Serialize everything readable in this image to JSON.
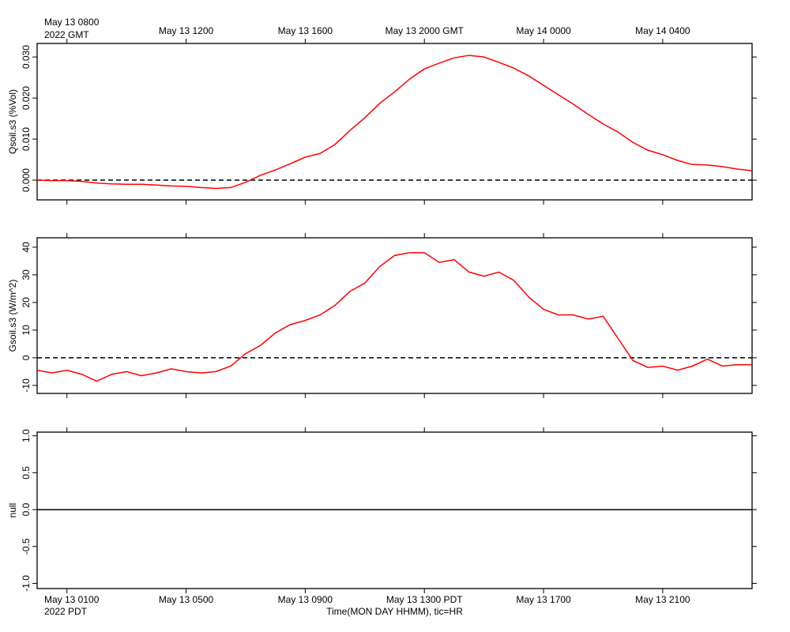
{
  "chart_data": [
    {
      "type": "line",
      "ylabel": "Qsoil.s3 (%Vol)",
      "x": [
        7,
        7.5,
        8,
        8.5,
        9,
        9.5,
        10,
        10.5,
        11,
        11.5,
        12,
        12.5,
        13,
        13.5,
        14,
        14.5,
        15,
        15.5,
        16,
        16.5,
        17,
        17.5,
        18,
        18.5,
        19,
        19.5,
        20,
        20.5,
        21,
        21.5,
        22,
        22.5,
        23,
        23.5,
        24,
        24.5,
        25,
        25.5,
        26,
        26.5,
        27,
        27.5,
        28,
        28.5,
        29,
        29.5,
        30,
        30.5,
        31
      ],
      "series": [
        {
          "color": "#ff0000",
          "values": [
            0,
            -0.0001,
            -0.0001,
            -0.0003,
            -0.0007,
            -0.0009,
            -0.001,
            -0.001,
            -0.0012,
            -0.0014,
            -0.0015,
            -0.0018,
            -0.002,
            -0.0018,
            -0.0005,
            0.0012,
            0.0025,
            0.004,
            0.0056,
            0.0065,
            0.0087,
            0.0121,
            0.0152,
            0.0187,
            0.0215,
            0.0246,
            0.0271,
            0.0285,
            0.0298,
            0.0304,
            0.03,
            0.0287,
            0.0273,
            0.0254,
            0.0231,
            0.0208,
            0.0185,
            0.016,
            0.0137,
            0.0117,
            0.0092,
            0.0073,
            0.0062,
            0.0048,
            0.0038,
            0.0037,
            0.0033,
            0.0027,
            0.0023
          ]
        }
      ],
      "xlim": [
        7,
        31
      ],
      "xticks": [
        {
          "value": 8,
          "label": "May 13 0800"
        },
        {
          "value": 12,
          "label": "May 13 1200"
        },
        {
          "value": 16,
          "label": "May 13 1600"
        },
        {
          "value": 20,
          "label": "May 13 2000 GMT"
        },
        {
          "value": 24,
          "label": "May 14 0000"
        },
        {
          "value": 28,
          "label": "May 14 0400"
        }
      ],
      "x_caption": "2022 GMT",
      "ylim": [
        -0.0048,
        0.0333
      ],
      "yticks": [
        {
          "value": 0,
          "label": "0.000"
        },
        {
          "value": 0.01,
          "label": "0.010"
        },
        {
          "value": 0.02,
          "label": "0.020"
        },
        {
          "value": 0.03,
          "label": "0.030"
        }
      ],
      "hline": 0,
      "hline_style": "dashed"
    },
    {
      "type": "line",
      "ylabel": "Gsoil.s3 (W/m^2)",
      "x": [
        7,
        7.5,
        8,
        8.5,
        9,
        9.5,
        10,
        10.5,
        11,
        11.5,
        12,
        12.5,
        13,
        13.5,
        14,
        14.5,
        15,
        15.5,
        16,
        16.5,
        17,
        17.5,
        18,
        18.5,
        19,
        19.5,
        20,
        20.5,
        21,
        21.5,
        22,
        22.5,
        23,
        23.5,
        24,
        24.5,
        25,
        25.5,
        26,
        26.5,
        27,
        27.5,
        28,
        28.5,
        29,
        29.5,
        30,
        30.5,
        31
      ],
      "series": [
        {
          "color": "#ff0000",
          "values": [
            -4.5,
            -5.5,
            -4.5,
            -6,
            -8.5,
            -6,
            -5,
            -6.5,
            -5.5,
            -4,
            -5,
            -5.5,
            -5,
            -3,
            1.5,
            4.5,
            9,
            12,
            13.5,
            15.5,
            19,
            24,
            27,
            33,
            37,
            38,
            38,
            34.5,
            35.5,
            31,
            29.5,
            31,
            28,
            22,
            17.5,
            15.5,
            15.5,
            14,
            15,
            7,
            -1,
            -3.5,
            -3,
            -4.5,
            -3,
            -0.5,
            -3,
            -2.5,
            -2.5
          ]
        }
      ],
      "xlim": [
        7,
        31
      ],
      "ylim": [
        -12.9,
        43.4
      ],
      "yticks": [
        -10,
        0,
        10,
        20,
        30,
        40
      ],
      "hline": 0,
      "hline_style": "dashed"
    },
    {
      "type": "line",
      "ylabel": "null",
      "series": [],
      "xlim": [
        7,
        31
      ],
      "xticks": [
        {
          "value": 8,
          "label": "May 13 0100"
        },
        {
          "value": 12,
          "label": "May 13 0500"
        },
        {
          "value": 16,
          "label": "May 13 0900"
        },
        {
          "value": 20,
          "label": "May 13 1300 PDT"
        },
        {
          "value": 24,
          "label": "May 13 1700"
        },
        {
          "value": 28,
          "label": "May 13 2100"
        }
      ],
      "x_caption": "2022 PDT",
      "xlabel": "Time(MON DAY HHMM), tic=HR",
      "ylim": [
        -1.07,
        1.05
      ],
      "yticks": [
        {
          "value": -1,
          "label": "-1.0"
        },
        {
          "value": -0.5,
          "label": "-0.5"
        },
        {
          "value": 0,
          "label": "0.0"
        },
        {
          "value": 0.5,
          "label": "0.5"
        },
        {
          "value": 1,
          "label": "1.0"
        }
      ],
      "hline": 0,
      "hline_style": "solid"
    }
  ]
}
